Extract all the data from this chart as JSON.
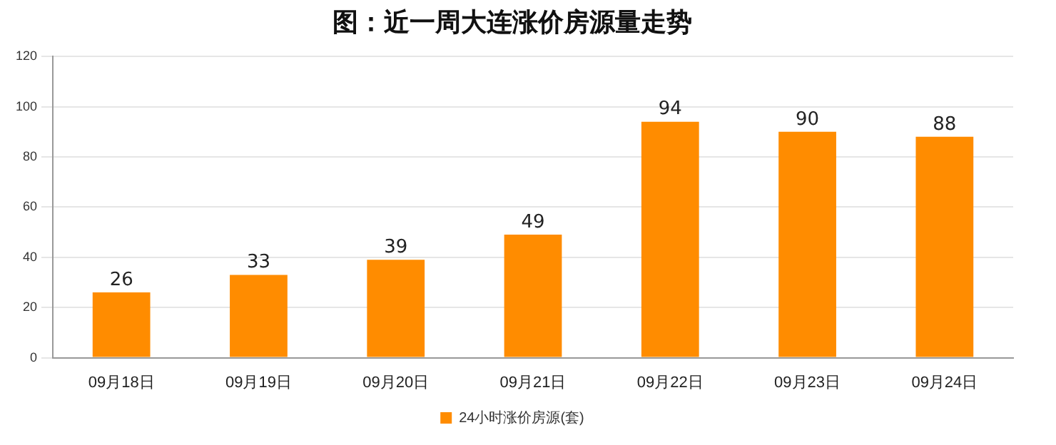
{
  "chart_data": {
    "type": "bar",
    "title": "图：近一周大连涨价房源量走势",
    "categories": [
      "09月18日",
      "09月19日",
      "09月20日",
      "09月21日",
      "09月22日",
      "09月23日",
      "09月24日"
    ],
    "series": [
      {
        "name": "24小时涨价房源(套)",
        "color": "#ff8c00",
        "values": [
          26,
          33,
          39,
          49,
          94,
          90,
          88
        ]
      }
    ],
    "ylim": [
      0,
      120
    ],
    "yticks": [
      0,
      20,
      40,
      60,
      80,
      100,
      120
    ],
    "grid": "y",
    "legend": "bottom",
    "data_labels": true
  }
}
